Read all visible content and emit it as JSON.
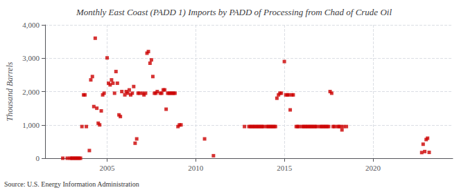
{
  "chart_data": {
    "type": "scatter",
    "title": "Monthly East Coast (PADD 1) Imports by PADD of Processing from Chad of Crude Oil",
    "ylabel": "Thousand Barrels",
    "annotations": [
      "Source: U.S. Energy Information Administration"
    ],
    "color": "#cc0000",
    "marker": "square",
    "grid": true,
    "xlim": [
      2001.5,
      2024.5
    ],
    "xticks": [
      2005,
      2010,
      2015,
      2020
    ],
    "ylim": [
      0,
      4000
    ],
    "yticks": [
      0,
      {
        "value": 1000,
        "label": "1,000"
      },
      {
        "value": 2000,
        "label": "2,000"
      },
      {
        "value": 3000,
        "label": "3,000"
      },
      {
        "value": 4000,
        "label": "4,000"
      }
    ],
    "x": [
      2002.5,
      2002.75,
      2002.92,
      2003.0,
      2003.08,
      2003.17,
      2003.25,
      2003.33,
      2003.42,
      2003.5,
      2003.58,
      2003.67,
      2003.75,
      2003.83,
      2004.0,
      2004.08,
      2004.17,
      2004.25,
      2004.33,
      2004.42,
      2004.5,
      2004.58,
      2004.67,
      2004.75,
      2004.83,
      2005.0,
      2005.08,
      2005.17,
      2005.25,
      2005.33,
      2005.42,
      2005.5,
      2005.58,
      2005.67,
      2005.75,
      2005.83,
      2006.0,
      2006.08,
      2006.17,
      2006.25,
      2006.33,
      2006.42,
      2006.5,
      2006.58,
      2006.67,
      2006.75,
      2006.83,
      2007.0,
      2007.08,
      2007.17,
      2007.25,
      2007.33,
      2007.42,
      2007.5,
      2007.58,
      2007.67,
      2007.75,
      2007.83,
      2008.0,
      2008.08,
      2008.17,
      2008.25,
      2008.33,
      2008.42,
      2008.5,
      2008.58,
      2008.67,
      2008.75,
      2008.83,
      2009.0,
      2009.08,
      2009.17,
      2010.5,
      2011.0,
      2012.75,
      2013.0,
      2013.08,
      2013.17,
      2013.25,
      2013.33,
      2013.42,
      2013.5,
      2013.58,
      2013.67,
      2013.75,
      2013.83,
      2014.0,
      2014.08,
      2014.17,
      2014.25,
      2014.33,
      2014.42,
      2014.5,
      2014.58,
      2014.67,
      2014.75,
      2014.83,
      2015.0,
      2015.08,
      2015.17,
      2015.25,
      2015.33,
      2015.42,
      2015.5,
      2015.67,
      2015.75,
      2015.83,
      2016.0,
      2016.08,
      2016.17,
      2016.25,
      2016.33,
      2016.42,
      2016.5,
      2016.58,
      2016.67,
      2016.75,
      2016.83,
      2017.0,
      2017.08,
      2017.17,
      2017.25,
      2017.33,
      2017.42,
      2017.5,
      2017.58,
      2017.67,
      2017.75,
      2017.83,
      2018.0,
      2018.08,
      2018.17,
      2018.25,
      2018.33,
      2018.5,
      2022.75,
      2022.83,
      2022.92,
      2023.0,
      2023.08,
      2023.17
    ],
    "values": [
      0,
      0,
      0,
      0,
      0,
      0,
      0,
      0,
      0,
      0,
      950,
      1900,
      1900,
      950,
      230,
      2350,
      2450,
      1550,
      3600,
      1500,
      1050,
      1000,
      1420,
      1900,
      1950,
      3010,
      2250,
      2200,
      2350,
      2250,
      1950,
      2600,
      2250,
      1300,
      1250,
      2000,
      1900,
      2000,
      1950,
      2050,
      1900,
      1950,
      2150,
      450,
      580,
      1950,
      1950,
      1950,
      1900,
      1950,
      3150,
      3200,
      2850,
      2950,
      2450,
      1950,
      1950,
      2000,
      1950,
      1950,
      2050,
      2050,
      1470,
      1950,
      1950,
      1950,
      1950,
      1950,
      1950,
      950,
      1000,
      1000,
      580,
      75,
      950,
      950,
      950,
      950,
      950,
      950,
      950,
      950,
      950,
      950,
      950,
      950,
      950,
      950,
      950,
      950,
      950,
      950,
      950,
      1800,
      1900,
      1950,
      1950,
      2900,
      1900,
      1900,
      1900,
      1450,
      1900,
      1900,
      950,
      950,
      950,
      950,
      950,
      950,
      950,
      950,
      950,
      950,
      950,
      950,
      950,
      950,
      950,
      950,
      950,
      950,
      950,
      950,
      950,
      2000,
      1950,
      950,
      950,
      950,
      950,
      950,
      850,
      950,
      950,
      170,
      420,
      200,
      560,
      600,
      175
    ]
  }
}
